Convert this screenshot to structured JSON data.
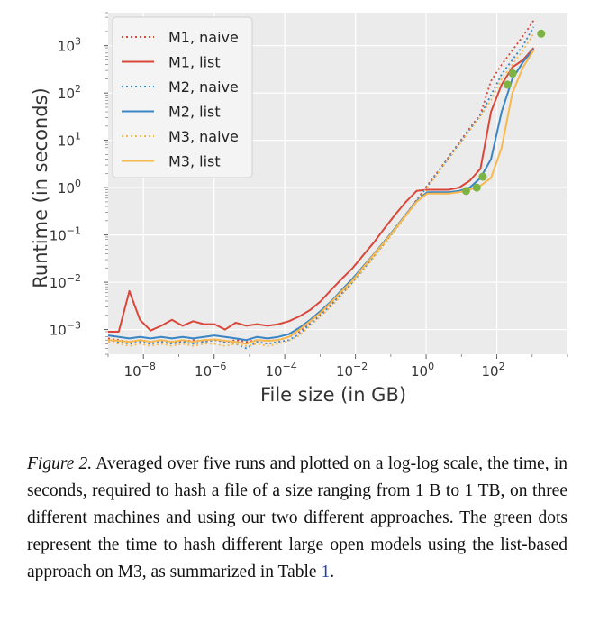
{
  "chart_data": {
    "type": "line",
    "x_scale": "log",
    "y_scale": "log",
    "xlabel": "File size (in GB)",
    "ylabel": "Runtime (in seconds)",
    "xlim": [
      1e-09,
      10000
    ],
    "ylim": [
      0.0003,
      5000
    ],
    "x_ticks": [
      1e-08,
      1e-06,
      0.0001,
      0.01,
      1,
      100
    ],
    "x_tick_labels": [
      {
        "base": "10",
        "exp": "−8"
      },
      {
        "base": "10",
        "exp": "−6"
      },
      {
        "base": "10",
        "exp": "−4"
      },
      {
        "base": "10",
        "exp": "−2"
      },
      {
        "base": "10",
        "exp": "0"
      },
      {
        "base": "10",
        "exp": "2"
      }
    ],
    "y_ticks": [
      0.001,
      0.01,
      0.1,
      1,
      10,
      100,
      1000
    ],
    "y_tick_labels": [
      {
        "base": "10",
        "exp": "−3"
      },
      {
        "base": "10",
        "exp": "−2"
      },
      {
        "base": "10",
        "exp": "−1"
      },
      {
        "base": "10",
        "exp": "0"
      },
      {
        "base": "10",
        "exp": "1"
      },
      {
        "base": "10",
        "exp": "2"
      },
      {
        "base": "10",
        "exp": "3"
      }
    ],
    "grid": true,
    "legend_position": "top-left",
    "colors": {
      "M1": "#d9473a",
      "M2": "#3a85c4",
      "M3": "#f7b84d",
      "models": "#7cb342",
      "plot_background": "#ebebeb",
      "grid": "#ffffff"
    },
    "series": [
      {
        "name": "M1, naive",
        "machine": "M1",
        "style": "dotted",
        "x": [
          1e-09,
          2e-09,
          4e-09,
          8e-09,
          1.6e-08,
          3.2e-08,
          6.4e-08,
          1.28e-07,
          2.56e-07,
          5.12e-07,
          1.024e-06,
          2.048e-06,
          4.096e-06,
          8.192e-06,
          1.6384e-05,
          3.2768e-05,
          6.5536e-05,
          0.000131,
          0.000262,
          0.000524,
          0.00105,
          0.0021,
          0.0042,
          0.0084,
          0.0168,
          0.0336,
          0.0672,
          0.134,
          0.268,
          0.537,
          1.07,
          2.15,
          4.29,
          8.59,
          17.2,
          34.4,
          68.7,
          137,
          275,
          550,
          1100
        ],
        "y": [
          0.00065,
          0.0006,
          0.00055,
          0.0006,
          0.00055,
          0.0006,
          0.00055,
          0.00055,
          0.0006,
          0.00055,
          0.0006,
          0.00055,
          0.0006,
          0.00055,
          0.0006,
          0.00058,
          0.0006,
          0.0007,
          0.0009,
          0.0014,
          0.0022,
          0.0035,
          0.006,
          0.011,
          0.02,
          0.038,
          0.07,
          0.14,
          0.27,
          0.55,
          1.1,
          2.2,
          4.4,
          9,
          18,
          36,
          180,
          400,
          800,
          1600,
          3400
        ]
      },
      {
        "name": "M1, list",
        "machine": "M1",
        "style": "solid",
        "x": [
          1e-09,
          2e-09,
          4e-09,
          8e-09,
          1.6e-08,
          3.2e-08,
          6.4e-08,
          1.28e-07,
          2.56e-07,
          5.12e-07,
          1.024e-06,
          2.048e-06,
          4.096e-06,
          8.192e-06,
          1.6384e-05,
          3.2768e-05,
          6.5536e-05,
          0.000131,
          0.000262,
          0.000524,
          0.00105,
          0.0021,
          0.0042,
          0.0084,
          0.0168,
          0.0336,
          0.0672,
          0.134,
          0.268,
          0.537,
          1.07,
          2.15,
          4.29,
          8.59,
          17.2,
          34.4,
          68.7,
          137,
          275,
          550,
          1100
        ],
        "y": [
          0.0009,
          0.0009,
          0.0065,
          0.0016,
          0.00095,
          0.0012,
          0.0016,
          0.0012,
          0.0015,
          0.0013,
          0.0013,
          0.001,
          0.0014,
          0.0012,
          0.0013,
          0.0012,
          0.0013,
          0.0015,
          0.0019,
          0.0026,
          0.004,
          0.007,
          0.012,
          0.02,
          0.038,
          0.07,
          0.14,
          0.27,
          0.5,
          0.85,
          0.9,
          0.9,
          0.9,
          1.0,
          1.4,
          2.5,
          40,
          150,
          350,
          500,
          900
        ]
      },
      {
        "name": "M2, naive",
        "machine": "M2",
        "style": "dotted",
        "x": [
          1e-09,
          2e-09,
          4e-09,
          8e-09,
          1.6e-08,
          3.2e-08,
          6.4e-08,
          1.28e-07,
          2.56e-07,
          5.12e-07,
          1.024e-06,
          2.048e-06,
          4.096e-06,
          8.192e-06,
          1.6384e-05,
          3.2768e-05,
          6.5536e-05,
          0.000131,
          0.000262,
          0.000524,
          0.00105,
          0.0021,
          0.0042,
          0.0084,
          0.0168,
          0.0336,
          0.0672,
          0.134,
          0.268,
          0.537,
          1.07,
          2.15,
          4.29,
          8.59,
          17.2,
          34.4,
          68.7,
          137,
          275,
          550,
          1100
        ],
        "y": [
          0.0006,
          0.00055,
          0.0005,
          0.00055,
          0.0005,
          0.00055,
          0.0005,
          0.00055,
          0.0005,
          0.00055,
          0.0006,
          0.00055,
          0.0005,
          0.0004,
          0.00055,
          0.0005,
          0.00055,
          0.0006,
          0.0008,
          0.0013,
          0.002,
          0.0033,
          0.0058,
          0.01,
          0.019,
          0.036,
          0.068,
          0.13,
          0.26,
          0.52,
          1.05,
          2.1,
          4.2,
          8.5,
          17,
          34,
          90,
          250,
          500,
          1000,
          2500
        ]
      },
      {
        "name": "M2, list",
        "machine": "M2",
        "style": "solid",
        "x": [
          1e-09,
          2e-09,
          4e-09,
          8e-09,
          1.6e-08,
          3.2e-08,
          6.4e-08,
          1.28e-07,
          2.56e-07,
          5.12e-07,
          1.024e-06,
          2.048e-06,
          4.096e-06,
          8.192e-06,
          1.6384e-05,
          3.2768e-05,
          6.5536e-05,
          0.000131,
          0.000262,
          0.000524,
          0.00105,
          0.0021,
          0.0042,
          0.0084,
          0.0168,
          0.0336,
          0.0672,
          0.134,
          0.268,
          0.537,
          1.07,
          2.15,
          4.29,
          8.59,
          17.2,
          34.4,
          68.7,
          137,
          275,
          550,
          1100
        ],
        "y": [
          0.00075,
          0.0007,
          0.00065,
          0.0007,
          0.00065,
          0.0007,
          0.00065,
          0.0007,
          0.00065,
          0.0007,
          0.00075,
          0.0007,
          0.00065,
          0.0006,
          0.0007,
          0.00065,
          0.0007,
          0.0008,
          0.0011,
          0.0016,
          0.0025,
          0.004,
          0.007,
          0.012,
          0.022,
          0.04,
          0.075,
          0.14,
          0.27,
          0.52,
          0.8,
          0.8,
          0.8,
          0.85,
          1.0,
          1.6,
          4,
          40,
          200,
          450,
          850
        ]
      },
      {
        "name": "M3, naive",
        "machine": "M3",
        "style": "dotted",
        "x": [
          1e-09,
          2e-09,
          4e-09,
          8e-09,
          1.6e-08,
          3.2e-08,
          6.4e-08,
          1.28e-07,
          2.56e-07,
          5.12e-07,
          1.024e-06,
          2.048e-06,
          4.096e-06,
          8.192e-06,
          1.6384e-05,
          3.2768e-05,
          6.5536e-05,
          0.000131,
          0.000262,
          0.000524,
          0.00105,
          0.0021,
          0.0042,
          0.0084,
          0.0168,
          0.0336,
          0.0672,
          0.134,
          0.268,
          0.537,
          1.07,
          2.15,
          4.29,
          8.59,
          17.2,
          34.4,
          68.7,
          137,
          275,
          550,
          1100
        ],
        "y": [
          0.00055,
          0.0005,
          0.00045,
          0.0005,
          0.00045,
          0.0005,
          0.00045,
          0.0005,
          0.00045,
          0.0005,
          0.0005,
          0.00045,
          0.0005,
          0.00045,
          0.0005,
          0.00045,
          0.0005,
          0.00058,
          0.00075,
          0.0012,
          0.0019,
          0.0031,
          0.0055,
          0.0098,
          0.018,
          0.034,
          0.065,
          0.125,
          0.25,
          0.5,
          1.0,
          2.0,
          4.0,
          8.0,
          16,
          32,
          70,
          200,
          400,
          800,
          1800
        ]
      },
      {
        "name": "M3, list",
        "machine": "M3",
        "style": "solid",
        "x": [
          1e-09,
          2e-09,
          4e-09,
          8e-09,
          1.6e-08,
          3.2e-08,
          6.4e-08,
          1.28e-07,
          2.56e-07,
          5.12e-07,
          1.024e-06,
          2.048e-06,
          4.096e-06,
          8.192e-06,
          1.6384e-05,
          3.2768e-05,
          6.5536e-05,
          0.000131,
          0.000262,
          0.000524,
          0.00105,
          0.0021,
          0.0042,
          0.0084,
          0.0168,
          0.0336,
          0.0672,
          0.134,
          0.268,
          0.537,
          1.07,
          2.15,
          4.29,
          8.59,
          17.2,
          34.4,
          68.7,
          137,
          275,
          550,
          1100
        ],
        "y": [
          0.0006,
          0.00058,
          0.00055,
          0.0006,
          0.00055,
          0.0006,
          0.00055,
          0.0006,
          0.00055,
          0.0006,
          0.00062,
          0.00058,
          0.00055,
          0.0005,
          0.0006,
          0.00058,
          0.0006,
          0.0007,
          0.001,
          0.0015,
          0.0023,
          0.0038,
          0.0066,
          0.011,
          0.021,
          0.039,
          0.072,
          0.135,
          0.26,
          0.5,
          0.75,
          0.75,
          0.75,
          0.8,
          0.9,
          1.1,
          1.6,
          7,
          100,
          350,
          800
        ]
      }
    ],
    "models": {
      "description": "green dots",
      "x": [
        13.5,
        27,
        40,
        200,
        280,
        1800
      ],
      "y": [
        0.85,
        1.0,
        1.7,
        150,
        260,
        1800
      ]
    }
  },
  "caption": {
    "label": "Figure 2.",
    "text": "Averaged over five runs and plotted on a log-log scale, the time, in seconds, required to hash a file of a size ranging from 1 B to 1 TB, on three different machines and using our two different approaches. The green dots represent the time to hash different large open models using the list-based approach on M3, as summarized in Table ",
    "ref": "1",
    "tail": "."
  }
}
